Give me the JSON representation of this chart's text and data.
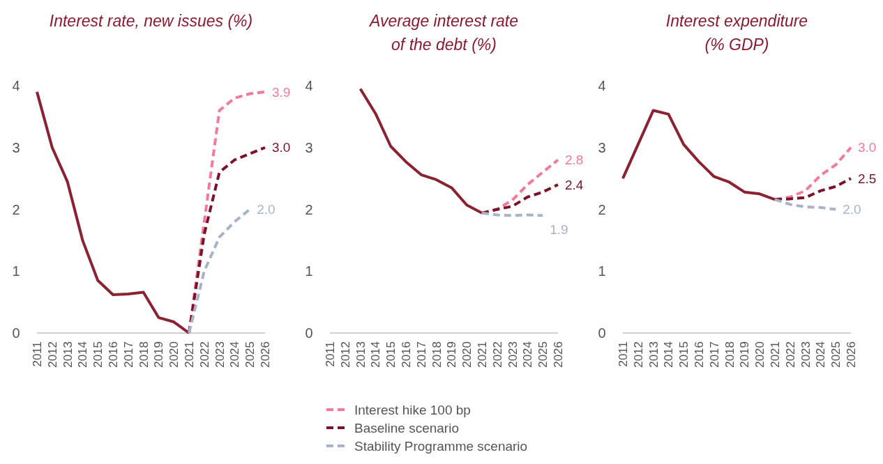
{
  "chart_data": [
    {
      "type": "line",
      "title": "Interest rate, new issues (%)",
      "categories": [
        "2011",
        "2012",
        "2013",
        "2014",
        "2015",
        "2016",
        "2017",
        "2018",
        "2019",
        "2020",
        "2021",
        "2022",
        "2023",
        "2024",
        "2025",
        "2026"
      ],
      "ylim": [
        0,
        4
      ],
      "yticks": [
        0,
        1,
        2,
        3,
        4
      ],
      "grid": false,
      "legend": false,
      "line_style": "solid",
      "series": [
        {
          "color": "#8b2232",
          "values": [
            3.9,
            3.0,
            2.45,
            1.5,
            0.85,
            0.62,
            0.63,
            0.66,
            0.25,
            0.18,
            0,
            null,
            null,
            null,
            null,
            null
          ]
        },
        {
          "color": "#f47a9a",
          "line_style": "dashed",
          "values": [
            null,
            null,
            null,
            null,
            null,
            null,
            null,
            null,
            null,
            null,
            0,
            1.8,
            3.6,
            3.8,
            3.87,
            3.9
          ],
          "value_labels": [
            null,
            null,
            null,
            null,
            null,
            null,
            null,
            null,
            null,
            null,
            null,
            null,
            null,
            null,
            null,
            "3.9"
          ]
        },
        {
          "color": "#7d1128",
          "line_style": "dashed",
          "values": [
            null,
            null,
            null,
            null,
            null,
            null,
            null,
            null,
            null,
            null,
            0,
            1.6,
            2.6,
            2.8,
            2.9,
            3.0
          ],
          "value_labels": [
            null,
            null,
            null,
            null,
            null,
            null,
            null,
            null,
            null,
            null,
            null,
            null,
            null,
            null,
            null,
            "3.0"
          ]
        },
        {
          "color": "#a9b3c8",
          "line_style": "dashed",
          "values": [
            null,
            null,
            null,
            null,
            null,
            null,
            null,
            null,
            null,
            null,
            0,
            1.0,
            1.55,
            1.8,
            2.0,
            null
          ],
          "value_labels": [
            null,
            null,
            null,
            null,
            null,
            null,
            null,
            null,
            null,
            null,
            null,
            null,
            null,
            null,
            "2.0",
            null
          ]
        }
      ]
    },
    {
      "type": "line",
      "title": "Average interest rate of the debt (%)",
      "categories": [
        "2011",
        "2012",
        "2013",
        "2014",
        "2015",
        "2016",
        "2017",
        "2018",
        "2019",
        "2020",
        "2021",
        "2022",
        "2023",
        "2024",
        "2025",
        "2026"
      ],
      "ylim": [
        0,
        4
      ],
      "yticks": [
        0,
        1,
        2,
        3,
        4
      ],
      "grid": false,
      "legend": "bottom",
      "line_style": "solid",
      "series": [
        {
          "color": "#8b2232",
          "values": [
            null,
            null,
            3.95,
            3.55,
            3.02,
            2.77,
            2.56,
            2.48,
            2.35,
            2.07,
            1.94,
            null,
            null,
            null,
            null,
            null
          ]
        },
        {
          "name": "Interest hike 100 bp",
          "color": "#f47a9a",
          "line_style": "dashed",
          "values": [
            null,
            null,
            null,
            null,
            null,
            null,
            null,
            null,
            null,
            null,
            1.94,
            2.0,
            2.15,
            2.4,
            2.6,
            2.8
          ],
          "value_labels": [
            null,
            null,
            null,
            null,
            null,
            null,
            null,
            null,
            null,
            null,
            null,
            null,
            null,
            null,
            null,
            "2.8"
          ]
        },
        {
          "name": "Baseline scenario",
          "color": "#7d1128",
          "line_style": "dashed",
          "values": [
            null,
            null,
            null,
            null,
            null,
            null,
            null,
            null,
            null,
            null,
            1.94,
            2.0,
            2.05,
            2.2,
            2.28,
            2.4
          ],
          "value_labels": [
            null,
            null,
            null,
            null,
            null,
            null,
            null,
            null,
            null,
            null,
            null,
            null,
            null,
            null,
            null,
            "2.4"
          ]
        },
        {
          "name": "Stability Programme scenario",
          "color": "#a9b3c8",
          "line_style": "dashed",
          "values": [
            null,
            null,
            null,
            null,
            null,
            null,
            null,
            null,
            null,
            null,
            1.94,
            1.91,
            1.9,
            1.91,
            1.9,
            null
          ],
          "value_labels": [
            null,
            null,
            null,
            null,
            null,
            null,
            null,
            null,
            null,
            null,
            null,
            null,
            null,
            null,
            "1.9",
            null
          ]
        }
      ]
    },
    {
      "type": "line",
      "title": "Interest expenditure (% GDP)",
      "categories": [
        "2011",
        "2012",
        "2013",
        "2014",
        "2015",
        "2016",
        "2017",
        "2018",
        "2019",
        "2020",
        "2021",
        "2022",
        "2023",
        "2024",
        "2025",
        "2026"
      ],
      "ylim": [
        0,
        4
      ],
      "yticks": [
        0,
        1,
        2,
        3,
        4
      ],
      "grid": false,
      "legend": false,
      "line_style": "solid",
      "series": [
        {
          "color": "#8b2232",
          "values": [
            2.5,
            3.05,
            3.6,
            3.54,
            3.05,
            2.77,
            2.53,
            2.44,
            2.28,
            2.25,
            2.16,
            null,
            null,
            null,
            null,
            null
          ]
        },
        {
          "color": "#f47a9a",
          "line_style": "dashed",
          "values": [
            null,
            null,
            null,
            null,
            null,
            null,
            null,
            null,
            null,
            null,
            2.16,
            2.2,
            2.3,
            2.55,
            2.72,
            3.0
          ],
          "value_labels": [
            null,
            null,
            null,
            null,
            null,
            null,
            null,
            null,
            null,
            null,
            null,
            null,
            null,
            null,
            null,
            "3.0"
          ]
        },
        {
          "color": "#7d1128",
          "line_style": "dashed",
          "values": [
            null,
            null,
            null,
            null,
            null,
            null,
            null,
            null,
            null,
            null,
            2.16,
            2.17,
            2.19,
            2.3,
            2.37,
            2.5
          ],
          "value_labels": [
            null,
            null,
            null,
            null,
            null,
            null,
            null,
            null,
            null,
            null,
            null,
            null,
            null,
            null,
            null,
            "2.5"
          ]
        },
        {
          "color": "#a9b3c8",
          "line_style": "dashed",
          "values": [
            null,
            null,
            null,
            null,
            null,
            null,
            null,
            null,
            null,
            null,
            2.16,
            2.08,
            2.04,
            2.03,
            2.0,
            null
          ],
          "value_labels": [
            null,
            null,
            null,
            null,
            null,
            null,
            null,
            null,
            null,
            null,
            null,
            null,
            null,
            null,
            "2.0",
            null
          ]
        }
      ]
    }
  ]
}
